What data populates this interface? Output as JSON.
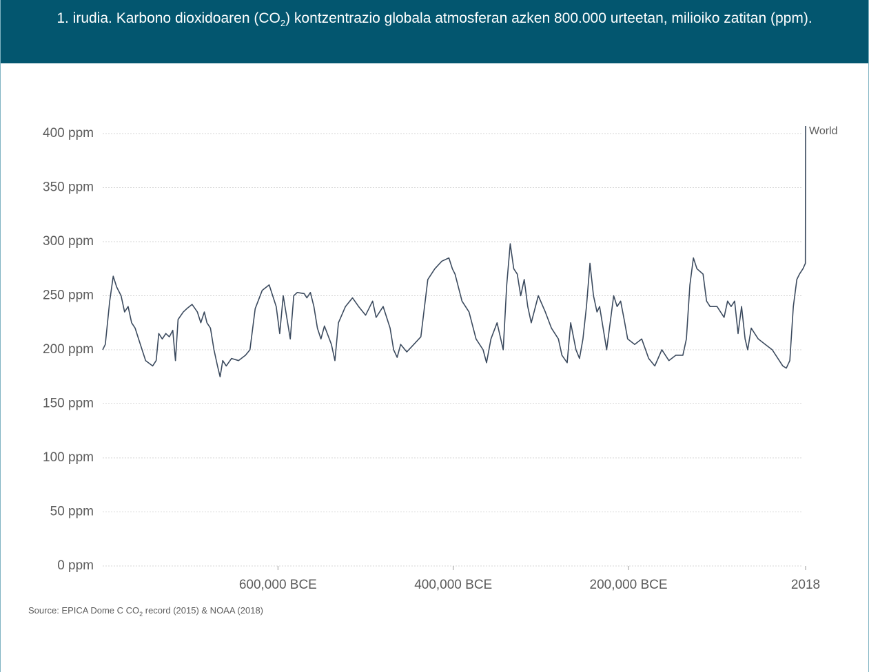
{
  "header": {
    "title_prefix": "1. irudia. Karbono dioxidoaren (CO",
    "title_sub": "2",
    "title_suffix": ") kontzentrazio globala atmosferan azken 800.000 urteetan, milioiko zatitan (ppm)."
  },
  "chart_data": {
    "type": "line",
    "source_prefix": "Source: EPICA Dome C CO",
    "source_sub": "2",
    "source_suffix": " record (2015) & NOAA (2018)",
    "xlim": [
      -800000,
      2018
    ],
    "ylim": [
      0,
      400
    ],
    "xticks": [
      {
        "value": -600000,
        "label": "600,000 BCE"
      },
      {
        "value": -400000,
        "label": "400,000 BCE"
      },
      {
        "value": -200000,
        "label": "200,000 BCE"
      },
      2018
    ],
    "yticks": [
      {
        "value": 0,
        "label": "0 ppm"
      },
      {
        "value": 50,
        "label": "50 ppm"
      },
      {
        "value": 100,
        "label": "100 ppm"
      },
      {
        "value": 150,
        "label": "150 ppm"
      },
      {
        "value": 200,
        "label": "200 ppm"
      },
      {
        "value": 250,
        "label": "250 ppm"
      },
      {
        "value": 300,
        "label": "300 ppm"
      },
      {
        "value": 350,
        "label": "350 ppm"
      },
      {
        "value": 400,
        "label": "400 ppm"
      }
    ],
    "grid": true,
    "x": [
      -800000,
      -797000,
      -792000,
      -788000,
      -784000,
      -779000,
      -775000,
      -771000,
      -767000,
      -763000,
      -759000,
      -755000,
      -751000,
      -743000,
      -739000,
      -736000,
      -732000,
      -728000,
      -724000,
      -720000,
      -717000,
      -714000,
      -708000,
      -704000,
      -698000,
      -692000,
      -688000,
      -684000,
      -681000,
      -677000,
      -673000,
      -669000,
      -666000,
      -663000,
      -659000,
      -653000,
      -645000,
      -637000,
      -632000,
      -626000,
      -618000,
      -610000,
      -606000,
      -602000,
      -598000,
      -594000,
      -590000,
      -586000,
      -582000,
      -578000,
      -570000,
      -567000,
      -563000,
      -559000,
      -555000,
      -551000,
      -547000,
      -539000,
      -535000,
      -531000,
      -523000,
      -515000,
      -508000,
      -500000,
      -492000,
      -488000,
      -480000,
      -472000,
      -468000,
      -464000,
      -460000,
      -453000,
      -445000,
      -437000,
      -429000,
      -421000,
      -413000,
      -405000,
      -401000,
      -398000,
      -390000,
      -382000,
      -374000,
      -366000,
      -362000,
      -357000,
      -350000,
      -343000,
      -339000,
      -335000,
      -331000,
      -327000,
      -323000,
      -319000,
      -315000,
      -311000,
      -303000,
      -295000,
      -288000,
      -280000,
      -276000,
      -270000,
      -266000,
      -260000,
      -256000,
      -252000,
      -248000,
      -244000,
      -240000,
      -236000,
      -233000,
      -225000,
      -217000,
      -213000,
      -209000,
      -205000,
      -201000,
      -193000,
      -185000,
      -177000,
      -170000,
      -162000,
      -154000,
      -146000,
      -138000,
      -134000,
      -130000,
      -126000,
      -122000,
      -115000,
      -111000,
      -107000,
      -99000,
      -91000,
      -87000,
      -83000,
      -79000,
      -75000,
      -71000,
      -67000,
      -64000,
      -60000,
      -52000,
      -44000,
      -36000,
      -28000,
      -24000,
      -20000,
      -16000,
      -12000,
      -8000,
      -5000,
      -1000,
      1800,
      2018
    ],
    "series": [
      {
        "name": "World",
        "color": "#3b4a5e",
        "values": [
          200,
          205,
          245,
          268,
          258,
          250,
          235,
          240,
          225,
          220,
          210,
          200,
          190,
          185,
          190,
          215,
          210,
          215,
          212,
          218,
          190,
          228,
          235,
          238,
          242,
          235,
          225,
          235,
          225,
          220,
          200,
          185,
          175,
          190,
          185,
          192,
          190,
          195,
          200,
          238,
          255,
          260,
          250,
          240,
          215,
          250,
          230,
          210,
          250,
          253,
          252,
          248,
          253,
          240,
          220,
          210,
          222,
          205,
          190,
          225,
          240,
          248,
          240,
          232,
          245,
          230,
          240,
          220,
          200,
          193,
          205,
          198,
          205,
          212,
          265,
          275,
          282,
          285,
          275,
          270,
          245,
          235,
          210,
          200,
          188,
          210,
          225,
          200,
          260,
          298,
          275,
          270,
          250,
          265,
          240,
          225,
          250,
          235,
          220,
          210,
          195,
          188,
          225,
          200,
          192,
          210,
          240,
          280,
          250,
          235,
          240,
          200,
          250,
          240,
          245,
          228,
          210,
          205,
          210,
          192,
          185,
          200,
          190,
          195,
          195,
          210,
          260,
          285,
          275,
          270,
          245,
          240,
          240,
          230,
          245,
          240,
          245,
          215,
          240,
          210,
          200,
          220,
          210,
          205,
          200,
          190,
          185,
          183,
          190,
          240,
          265,
          270,
          275,
          280,
          407
        ]
      }
    ]
  }
}
